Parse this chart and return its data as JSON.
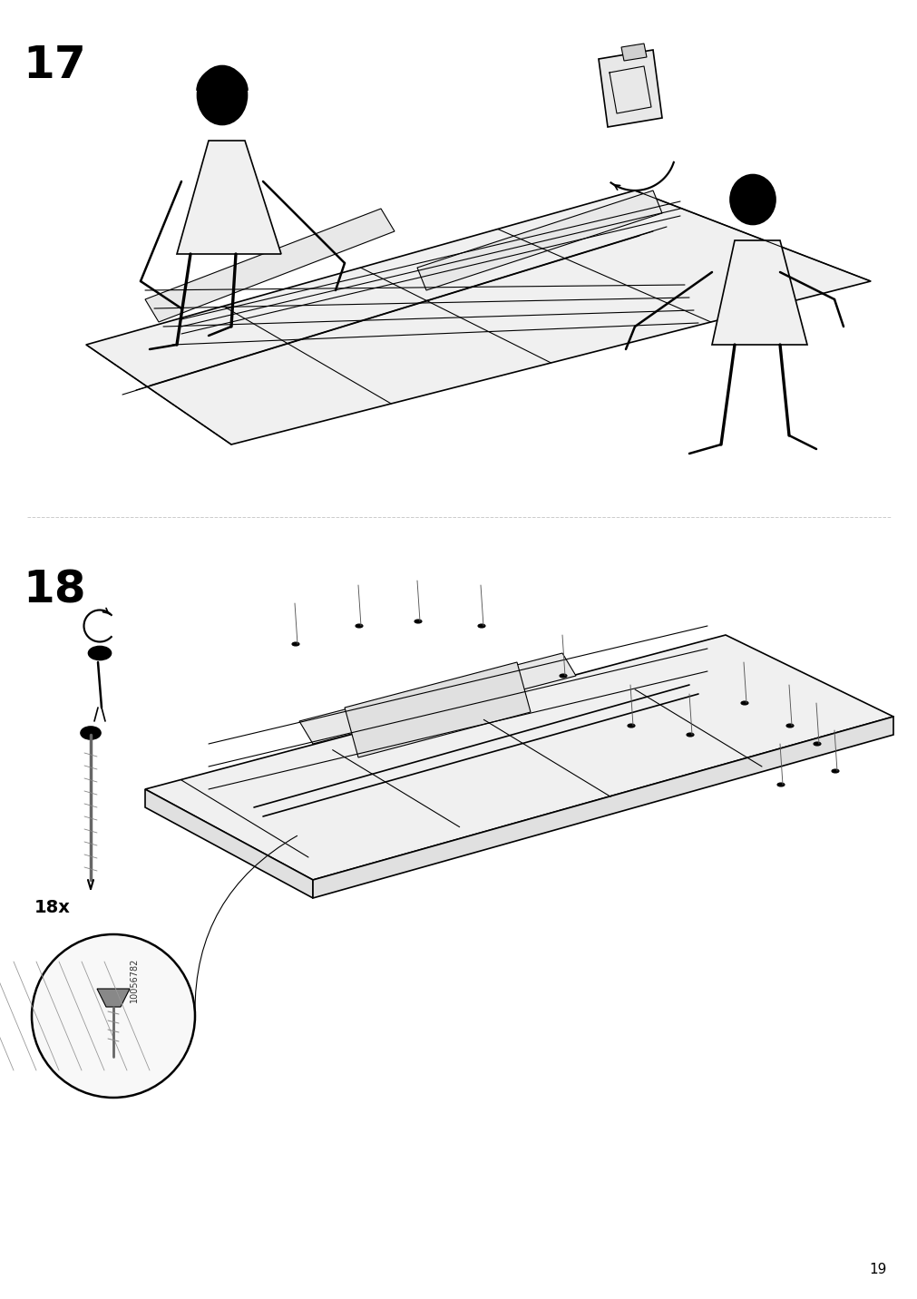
{
  "page_number": "19",
  "step1_number": "17",
  "step2_number": "18",
  "step2_count": "18x",
  "part_code": "10056782",
  "bg_color": "#ffffff",
  "line_color": "#000000",
  "step_num_fontsize": 36,
  "page_num_fontsize": 11,
  "figsize": [
    10.12,
    14.32
  ],
  "dpi": 100
}
